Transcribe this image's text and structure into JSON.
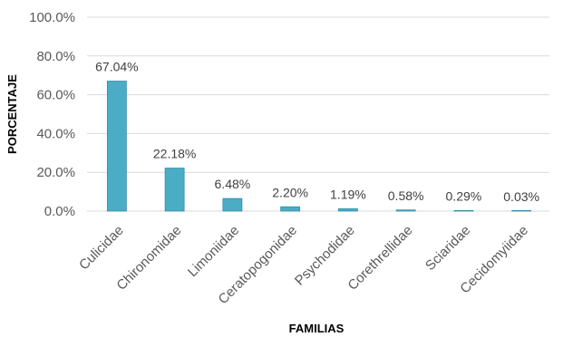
{
  "chart_data": {
    "type": "bar",
    "title": "",
    "xlabel": "FAMILIAS",
    "ylabel": "PORCENTAJE",
    "categories": [
      "Culicidae",
      "Chironomidae",
      "Limoniidae",
      "Ceratopogonidae",
      "Psychodidae",
      "Corethrellidae",
      "Sciaridae",
      "Cecidomyiidae"
    ],
    "values": [
      67.04,
      22.18,
      6.48,
      2.2,
      1.19,
      0.58,
      0.29,
      0.03
    ],
    "data_labels": [
      "67.04%",
      "22.18%",
      "6.48%",
      "2.20%",
      "1.19%",
      "0.58%",
      "0.29%",
      "0.03%"
    ],
    "ylim": [
      0,
      100
    ],
    "yticks": [
      0,
      20,
      40,
      60,
      80,
      100
    ],
    "ytick_labels": [
      "0.0%",
      "20.0%",
      "40.0%",
      "60.0%",
      "80.0%",
      "100.0%"
    ],
    "grid": true,
    "legend": "none",
    "colors": {
      "bar": "#4bacc6",
      "bar_stroke": "#2e8fa8",
      "grid": "#d9d9d9",
      "tick_text": "#595959",
      "label_text": "#404040"
    }
  }
}
